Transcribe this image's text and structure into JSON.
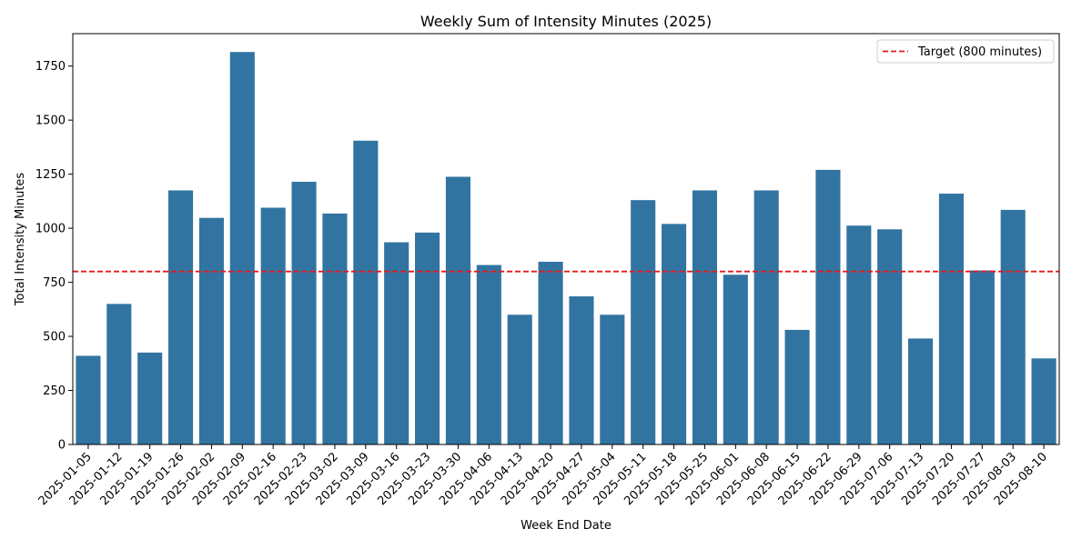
{
  "chart_data": {
    "type": "bar",
    "title": "Weekly Sum of Intensity Minutes (2025)",
    "xlabel": "Week End Date",
    "ylabel": "Total Intensity Minutes",
    "ylim": [
      0,
      1900
    ],
    "yticks": [
      0,
      250,
      500,
      750,
      1000,
      1250,
      1500,
      1750
    ],
    "grid": false,
    "bar_color": "#3274a1",
    "categories": [
      "2025-01-05",
      "2025-01-12",
      "2025-01-19",
      "2025-01-26",
      "2025-02-02",
      "2025-02-09",
      "2025-02-16",
      "2025-02-23",
      "2025-03-02",
      "2025-03-09",
      "2025-03-16",
      "2025-03-23",
      "2025-03-30",
      "2025-04-06",
      "2025-04-13",
      "2025-04-20",
      "2025-04-27",
      "2025-05-04",
      "2025-05-11",
      "2025-05-18",
      "2025-05-25",
      "2025-06-01",
      "2025-06-08",
      "2025-06-15",
      "2025-06-22",
      "2025-06-29",
      "2025-07-06",
      "2025-07-13",
      "2025-07-20",
      "2025-07-27",
      "2025-08-03",
      "2025-08-10"
    ],
    "values": [
      410,
      650,
      425,
      1175,
      1048,
      1815,
      1095,
      1215,
      1068,
      1405,
      935,
      980,
      1238,
      830,
      600,
      845,
      685,
      600,
      1130,
      1020,
      1175,
      785,
      1175,
      530,
      1270,
      1012,
      995,
      490,
      1160,
      805,
      1085,
      398
    ],
    "target_line": {
      "value": 800,
      "label": "Target (800 minutes)",
      "color": "#e31a1c",
      "style": "dashed"
    },
    "legend_position": "top-right"
  }
}
